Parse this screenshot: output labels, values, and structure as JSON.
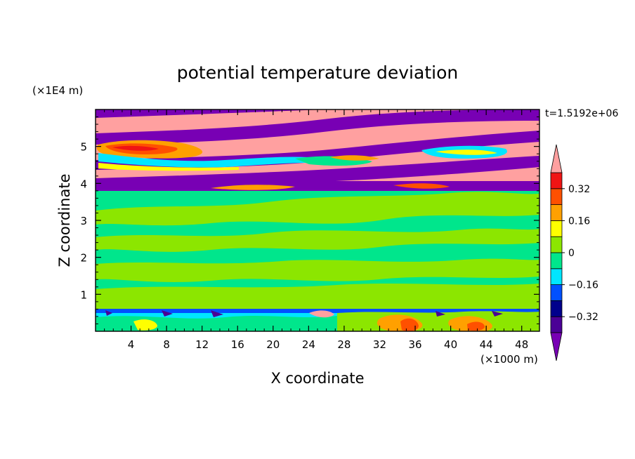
{
  "chart_data": {
    "type": "heatmap",
    "title": "potential temperature deviation",
    "xlabel": "X coordinate",
    "ylabel": "Z coordinate",
    "x_unit": "(×1000 m)",
    "y_unit": "(×1E4 m)",
    "time_label": "t=1.5192e+06",
    "xlim": [
      0,
      50
    ],
    "ylim": [
      0,
      6
    ],
    "x_ticks": [
      "4",
      "8",
      "12",
      "16",
      "20",
      "24",
      "28",
      "32",
      "36",
      "40",
      "44",
      "48"
    ],
    "x_tick_values": [
      4,
      8,
      12,
      16,
      20,
      24,
      28,
      32,
      36,
      40,
      44,
      48
    ],
    "y_ticks": [
      "1",
      "2",
      "3",
      "4",
      "5"
    ],
    "y_tick_values": [
      1,
      2,
      3,
      4,
      5
    ],
    "colorbar": {
      "levels": [
        -0.4,
        -0.32,
        -0.24,
        -0.16,
        -0.08,
        0,
        0.08,
        0.16,
        0.24,
        0.32,
        0.4
      ],
      "tick_labels": [
        "0.32",
        "0.16",
        "0",
        "−0.16",
        "−0.32"
      ],
      "tick_values": [
        0.32,
        0.16,
        0,
        -0.16,
        -0.32
      ],
      "colors": [
        "#4b0096",
        "#00008c",
        "#0050ff",
        "#00e6ff",
        "#00e68c",
        "#8ce600",
        "#ffff00",
        "#ffa000",
        "#ff5000",
        "#f01414",
        "#ffa0a0",
        "#7800b4"
      ],
      "extend": "both"
    },
    "fields": [
      {
        "region": "bottom layer z 0–0.6",
        "dominant": [
          -0.16,
          -0.08
        ],
        "notes": "warm patches up to 0.32 near x 34–46"
      },
      {
        "region": "lower interior z 0.6–3.8",
        "dominant": [
          0,
          0.08
        ],
        "notes": "banded near-neutral deviation"
      },
      {
        "region": "upper layer z 3.8–6",
        "dominant": [
          -0.4,
          0.4
        ],
        "notes": "alternating tilted bands saturating both extremes"
      }
    ]
  }
}
